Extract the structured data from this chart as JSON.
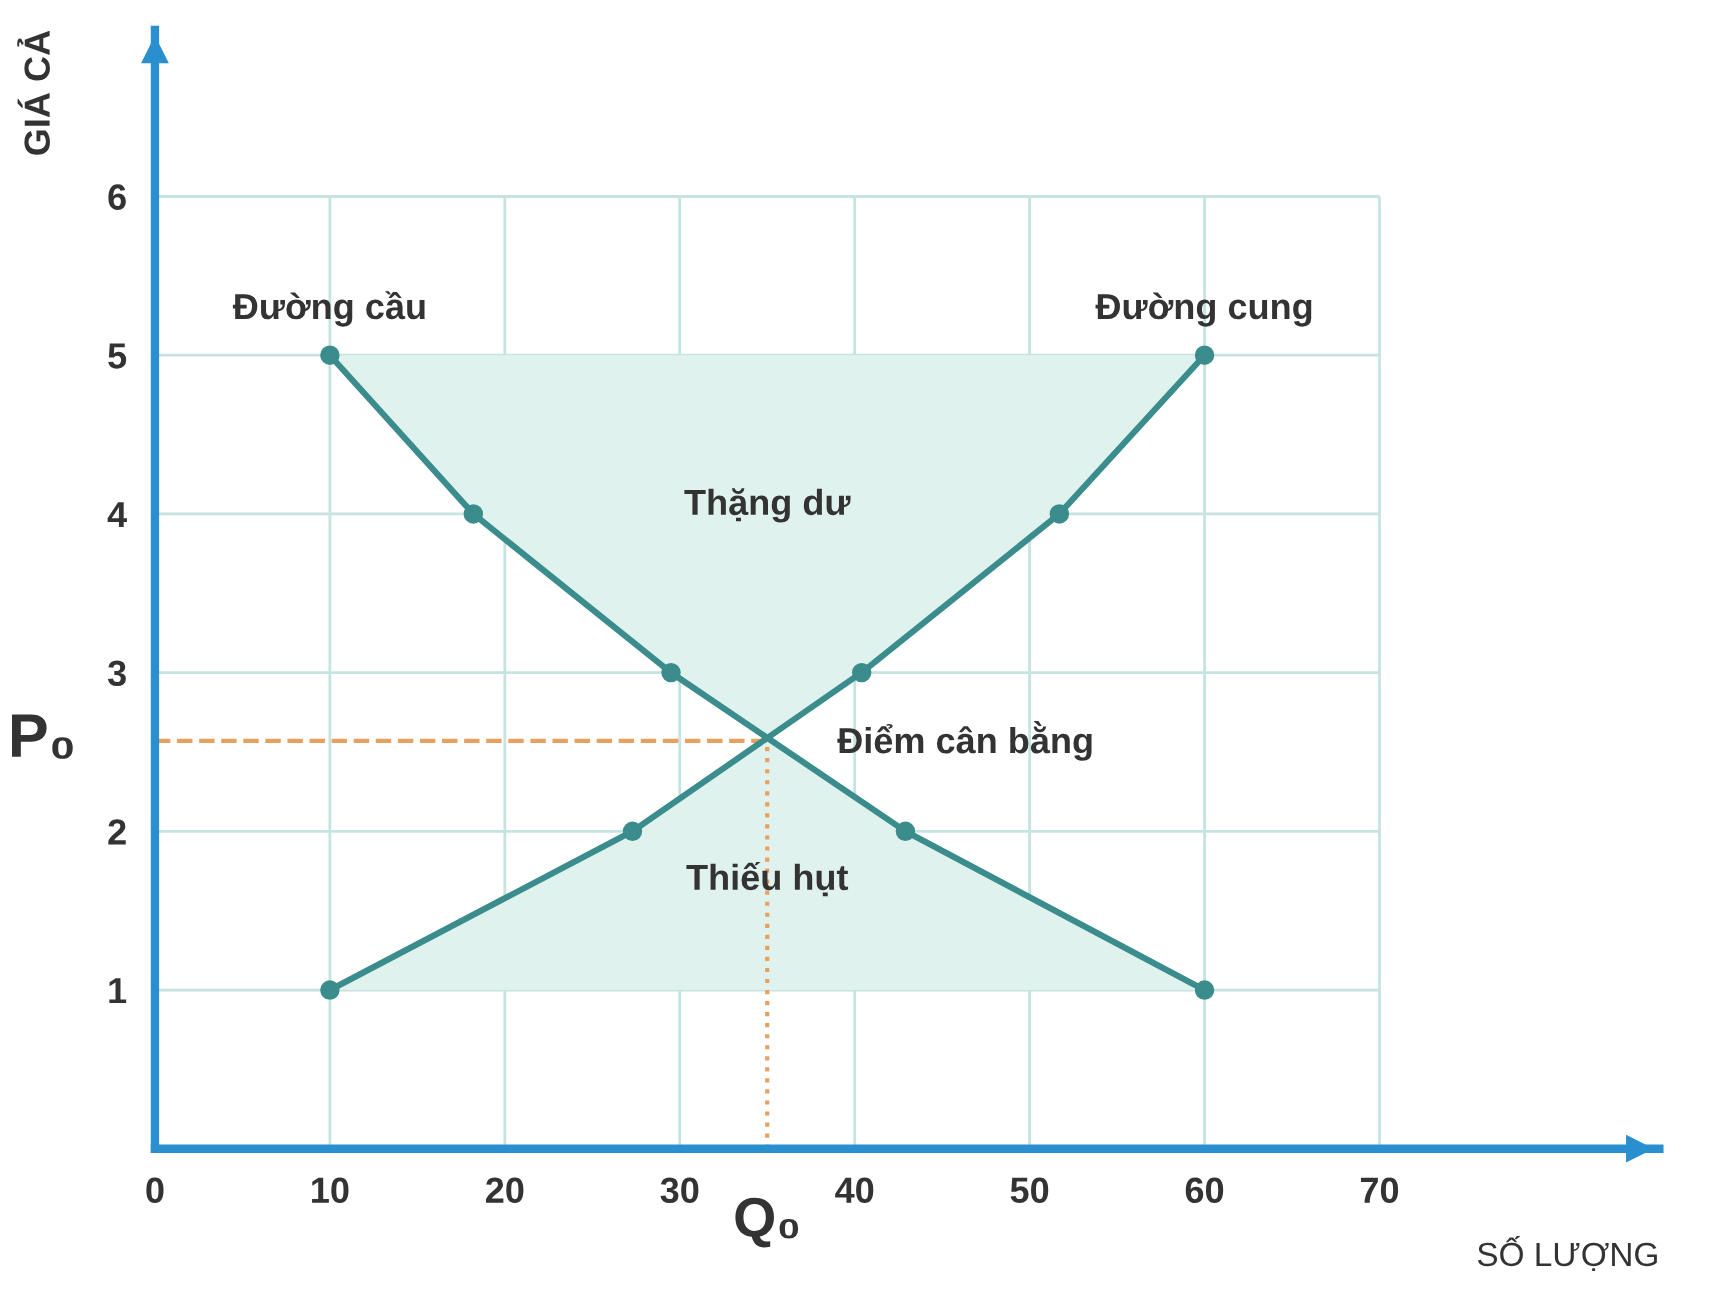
{
  "chart_data": {
    "type": "line",
    "xlabel": "SỐ LƯỢNG",
    "ylabel": "GIÁ CẢ",
    "series": [
      {
        "name": "Đường cầu",
        "color": "#3b8c8c",
        "x": [
          10,
          18.2,
          29.5,
          42.9,
          60
        ],
        "values": [
          5,
          4,
          3,
          2,
          1
        ]
      },
      {
        "name": "Đường cung",
        "color": "#3b8c8c",
        "x": [
          10,
          27.3,
          40.4,
          51.7,
          60
        ],
        "values": [
          1,
          2,
          3,
          4,
          5
        ]
      }
    ],
    "xlim": [
      0,
      86
    ],
    "ylim": [
      0,
      7.05
    ],
    "xticks": [
      0,
      10,
      20,
      30,
      40,
      50,
      60,
      70
    ],
    "yticks": [
      1,
      2,
      3,
      4,
      5,
      6
    ],
    "grid": true,
    "marker": "circle",
    "line_style": "solid",
    "ref_lines": [
      {
        "axis": "x",
        "value": 35,
        "label": "Q₀",
        "color": "#e8a060",
        "line_style": "dotted"
      },
      {
        "axis": "y",
        "value": 2.57,
        "label": "P₀",
        "color": "#e8a060",
        "line_style": "dashed"
      }
    ],
    "annotations": [
      "Thặng dư",
      {
        "text": "Điểm cân bằng",
        "x": 35,
        "y": 2.57
      },
      "Thiếu hụt"
    ]
  }
}
